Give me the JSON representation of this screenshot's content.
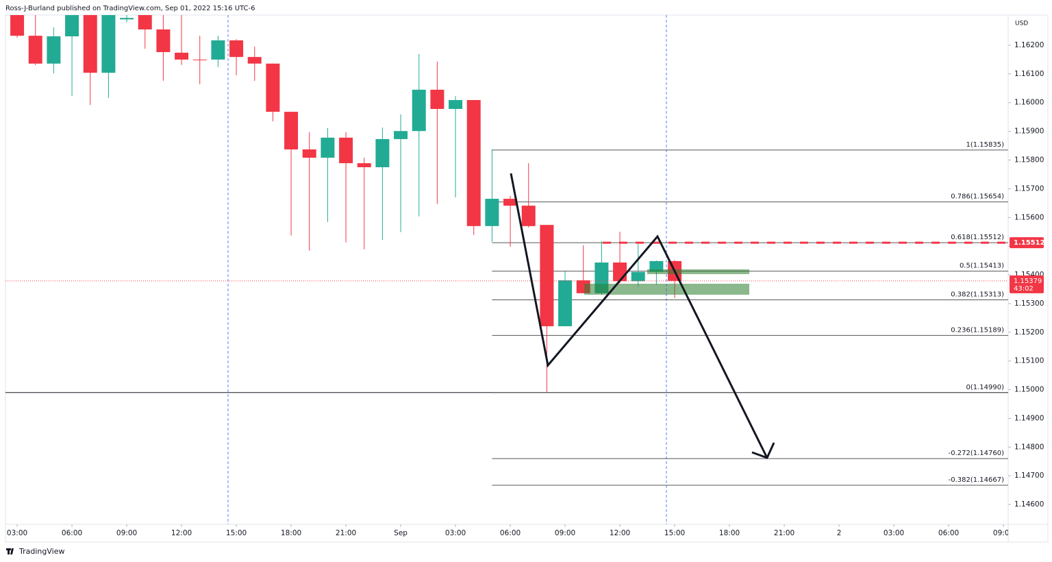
{
  "header": {
    "text": "Ross-J-Burland published on TradingView.com, Sep 01, 2022 15:16 UTC-6"
  },
  "footer": {
    "brand": "TradingView"
  },
  "chart_data": {
    "type": "candlestick",
    "currency": "USD",
    "up_color": "#22ab94",
    "down_color": "#f23645",
    "x": [
      0,
      1,
      2,
      3,
      4,
      5,
      6,
      7,
      8,
      9,
      10,
      11,
      12,
      13,
      14,
      15,
      16,
      17,
      18,
      19,
      20,
      21,
      22,
      23,
      24,
      25,
      26,
      27,
      28,
      29,
      30,
      31,
      32,
      33,
      34,
      35,
      36
    ],
    "open": [
      1.16305,
      1.16233,
      1.16136,
      1.16231,
      1.16305,
      1.16104,
      1.1629,
      1.16305,
      1.16255,
      1.16174,
      1.1615,
      1.1615,
      1.16217,
      1.16159,
      1.16136,
      1.15968,
      1.15837,
      1.15808,
      1.15878,
      1.15789,
      1.15775,
      1.15873,
      1.15901,
      1.16045,
      1.15978,
      1.16009,
      1.1557,
      1.15665,
      1.15641,
      1.15574,
      1.15221,
      1.15381,
      1.15336,
      1.15443,
      1.15378,
      1.1541,
      1.15448
    ],
    "high": [
      1.16305,
      1.16305,
      1.16262,
      1.16305,
      1.16305,
      1.16305,
      1.16305,
      1.16305,
      1.16305,
      1.16305,
      1.16233,
      1.16233,
      1.16221,
      1.16195,
      1.16136,
      1.15968,
      1.15897,
      1.15911,
      1.15897,
      1.15808,
      1.15913,
      1.15959,
      1.16169,
      1.16143,
      1.16023,
      1.16009,
      1.15837,
      1.15675,
      1.15789,
      1.15574,
      1.15412,
      1.15503,
      1.15517,
      1.1555,
      1.15507,
      1.1545,
      1.15452
    ],
    "low": [
      1.16226,
      1.16131,
      1.16102,
      1.16023,
      1.15992,
      1.16016,
      1.1628,
      1.16188,
      1.16076,
      1.16131,
      1.16064,
      1.16124,
      1.16095,
      1.16076,
      1.15935,
      1.15537,
      1.15484,
      1.15584,
      1.15513,
      1.15489,
      1.15522,
      1.15549,
      1.15604,
      1.15647,
      1.1567,
      1.15539,
      1.15515,
      1.15498,
      1.15565,
      1.14992,
      1.15221,
      1.15336,
      1.15331,
      1.15371,
      1.15359,
      1.15366,
      1.15319
    ],
    "close": [
      1.16233,
      1.16136,
      1.16231,
      1.16305,
      1.16104,
      1.16305,
      1.16295,
      1.16255,
      1.16176,
      1.1615,
      1.16148,
      1.16217,
      1.16159,
      1.16136,
      1.15968,
      1.15837,
      1.15808,
      1.15878,
      1.15789,
      1.15775,
      1.15873,
      1.15901,
      1.16045,
      1.15978,
      1.16009,
      1.1557,
      1.15665,
      1.15641,
      1.1557,
      1.15221,
      1.15381,
      1.15336,
      1.15443,
      1.15378,
      1.1541,
      1.15448,
      1.15379
    ],
    "xlim": [
      -0.64,
      54.26
    ],
    "xticks": [
      {
        "value": 0,
        "label": "03:00"
      },
      {
        "value": 3,
        "label": "06:00"
      },
      {
        "value": 6,
        "label": "09:00"
      },
      {
        "value": 9,
        "label": "12:00"
      },
      {
        "value": 12,
        "label": "15:00"
      },
      {
        "value": 15,
        "label": "18:00"
      },
      {
        "value": 18,
        "label": "21:00"
      },
      {
        "value": 21,
        "label": "Sep"
      },
      {
        "value": 24,
        "label": "03:00"
      },
      {
        "value": 27,
        "label": "06:00"
      },
      {
        "value": 30,
        "label": "09:00"
      },
      {
        "value": 33,
        "label": "12:00"
      },
      {
        "value": 36,
        "label": "15:00"
      },
      {
        "value": 39,
        "label": "18:00"
      },
      {
        "value": 42,
        "label": "21:00"
      },
      {
        "value": 45,
        "label": "2"
      },
      {
        "value": 48,
        "label": "03:00"
      },
      {
        "value": 51,
        "label": "06:00"
      },
      {
        "value": 54,
        "label": "09:00"
      }
    ],
    "ylim": [
      1.14531,
      1.16305
    ],
    "yticks": [
      {
        "value": 1.162,
        "label": "1.16200"
      },
      {
        "value": 1.161,
        "label": "1.16100"
      },
      {
        "value": 1.16,
        "label": "1.16000"
      },
      {
        "value": 1.159,
        "label": "1.15900"
      },
      {
        "value": 1.158,
        "label": "1.15800"
      },
      {
        "value": 1.157,
        "label": "1.15700"
      },
      {
        "value": 1.156,
        "label": "1.15600"
      },
      {
        "value": 1.155,
        "label": "1.15500"
      },
      {
        "value": 1.154,
        "label": "1.15400"
      },
      {
        "value": 1.153,
        "label": "1.15300"
      },
      {
        "value": 1.152,
        "label": "1.15200"
      },
      {
        "value": 1.151,
        "label": "1.15100"
      },
      {
        "value": 1.15,
        "label": "1.15000"
      },
      {
        "value": 1.149,
        "label": "1.14900"
      },
      {
        "value": 1.148,
        "label": "1.14800"
      },
      {
        "value": 1.147,
        "label": "1.14700"
      },
      {
        "value": 1.146,
        "label": "1.14600"
      }
    ],
    "fib_levels": [
      {
        "value": 1.15835,
        "label": "1(1.15835)"
      },
      {
        "value": 1.15654,
        "label": "0.786(1.15654)"
      },
      {
        "value": 1.15512,
        "label": "0.618(1.15512)"
      },
      {
        "value": 1.15413,
        "label": "0.5(1.15413)"
      },
      {
        "value": 1.15313,
        "label": "0.382(1.15313)"
      },
      {
        "value": 1.15189,
        "label": "0.236(1.15189)"
      },
      {
        "value": 1.1499,
        "label": "0(1.14990)"
      },
      {
        "value": 1.1476,
        "label": "-0.272(1.14760)"
      },
      {
        "value": 1.14667,
        "label": "-0.382(1.14667)"
      }
    ],
    "horizontal_line": 1.1499,
    "price_tags": [
      {
        "value": 1.15512,
        "label": "1.15512"
      },
      {
        "value": 1.15379,
        "label": "1.15379",
        "countdown": "43:02"
      }
    ]
  }
}
